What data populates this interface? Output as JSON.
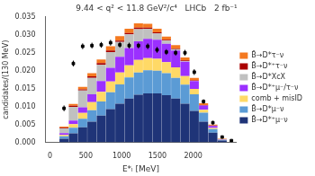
{
  "chart_data": {
    "type": "bar",
    "stacked": true,
    "title": "9.44 < q² < 11.8 GeV²/c⁴   LHCb   2 fb⁻¹",
    "xlabel": "E*ₗ [MeV]",
    "ylabel": "candidates/(130 MeV)",
    "bins": [
      0,
      130,
      260,
      390,
      520,
      650,
      780,
      910,
      1040,
      1170,
      1300,
      1430,
      1560,
      1690,
      1820,
      1950,
      2080,
      2210,
      2340,
      2470,
      2600
    ],
    "xlim": [
      -65,
      2600
    ],
    "xticks": [
      0,
      500,
      1000,
      1500,
      2000
    ],
    "ylim": [
      0,
      0.035
    ],
    "yticks": [
      {
        "value": 0,
        "label": "0.000"
      },
      0.005,
      {
        "value": 0.01,
        "label": "0.010"
      },
      0.015,
      {
        "value": 0.02,
        "label": "0.020"
      },
      0.025,
      {
        "value": 0.03,
        "label": "0.030"
      },
      0.035
    ],
    "grid": false,
    "legend": "right",
    "series": [
      {
        "name": "B̄→D*⁺μ⁻ν",
        "color": "#1f3478",
        "values": [
          0.0,
          0.001,
          0.0025,
          0.0042,
          0.0058,
          0.0075,
          0.0093,
          0.0108,
          0.0122,
          0.0133,
          0.0137,
          0.0137,
          0.0132,
          0.0122,
          0.0108,
          0.0088,
          0.0058,
          0.0027,
          0.0005,
          0.0
        ]
      },
      {
        "name": "B̄→D*μ⁻ν",
        "color": "#5b9bd5",
        "values": [
          0.0,
          0.0007,
          0.0016,
          0.0024,
          0.0032,
          0.0039,
          0.0047,
          0.0054,
          0.0059,
          0.0062,
          0.0064,
          0.0063,
          0.0061,
          0.0058,
          0.0053,
          0.0046,
          0.0025,
          0.001,
          0.0002,
          0.0
        ]
      },
      {
        "name": "comb + misID",
        "color": "#ffd966",
        "values": [
          0.0,
          0.0004,
          0.001,
          0.0016,
          0.0022,
          0.0027,
          0.003,
          0.0033,
          0.0034,
          0.0035,
          0.0034,
          0.0033,
          0.0031,
          0.0029,
          0.0024,
          0.0015,
          0.0008,
          0.0003,
          0.0001,
          0.0
        ]
      },
      {
        "name": "B̄→D*⁺μ⁻/τ⁻ν",
        "color": "#9b30ff",
        "values": [
          0.0,
          0.0005,
          0.001,
          0.0016,
          0.0022,
          0.003,
          0.0038,
          0.0044,
          0.0048,
          0.0052,
          0.0054,
          0.0053,
          0.0051,
          0.0047,
          0.004,
          0.0022,
          0.0012,
          0.0006,
          0.0001,
          0.0
        ]
      },
      {
        "name": "B̄→D*XcX",
        "color": "#c0c0c0",
        "values": [
          0.0,
          0.0013,
          0.0038,
          0.0047,
          0.0046,
          0.0046,
          0.0044,
          0.0041,
          0.0038,
          0.0034,
          0.0028,
          0.0018,
          0.0009,
          0.0004,
          0.0002,
          0.0001,
          0.0,
          0.0,
          0.0,
          0.0
        ]
      },
      {
        "name": "B̄→D*⁺τ⁻ν",
        "color": "#aa0000",
        "values": [
          0.0,
          0.0002,
          0.0003,
          0.0003,
          0.0004,
          0.0004,
          0.0004,
          0.0004,
          0.0004,
          0.0004,
          0.0003,
          0.0003,
          0.0002,
          0.0002,
          0.0002,
          0.0001,
          0.0001,
          0.0001,
          0.0,
          0.0
        ]
      },
      {
        "name": "B̄→D*τ⁻ν",
        "color": "#f47920",
        "values": [
          0.0,
          0.0003,
          0.0005,
          0.0007,
          0.0009,
          0.001,
          0.0012,
          0.0012,
          0.0012,
          0.0012,
          0.0011,
          0.001,
          0.0009,
          0.0009,
          0.0008,
          0.0007,
          0.0005,
          0.0003,
          0.0001,
          0.0
        ]
      },
      {
        "type": "scatter",
        "marker": "square",
        "color": "#000000",
        "values": [
          null,
          0.0095,
          0.022,
          0.0268,
          0.027,
          0.0272,
          0.0278,
          0.0272,
          0.027,
          0.027,
          0.0268,
          0.0258,
          0.0252,
          0.025,
          0.025,
          0.0196,
          0.0114,
          0.0055,
          0.0015,
          0.0005
        ],
        "errors": [
          null,
          0.0008,
          0.0008,
          0.0008,
          0.0008,
          0.0008,
          0.0008,
          0.0008,
          0.0008,
          0.0008,
          0.0008,
          0.0008,
          0.0008,
          0.0008,
          0.0008,
          0.0008,
          0.0006,
          0.0005,
          0.0003,
          0.0002
        ]
      }
    ]
  }
}
